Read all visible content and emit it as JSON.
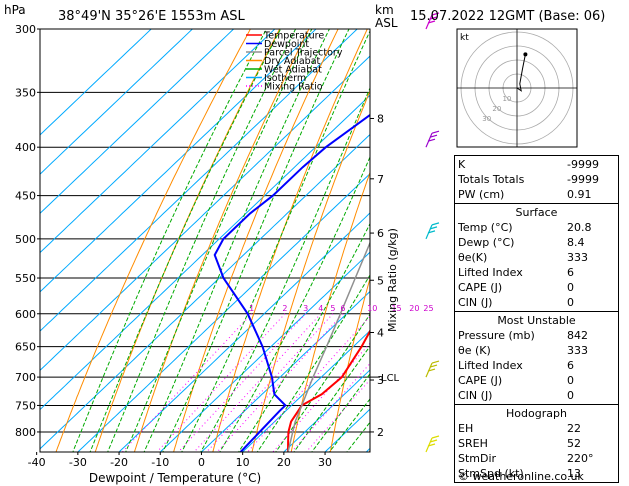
{
  "header": {
    "hpa_label": "hPa",
    "location": "38°49'N  35°26'E  1553m  ASL",
    "km_label": "km",
    "asl_label": "ASL",
    "datetime": "15.07.2022  12GMT  (Base: 06)"
  },
  "chart_data": {
    "type": "line",
    "xlabel": "Dewpoint / Temperature (°C)",
    "ylabel": "Mixing Ratio (g/kg)",
    "x_range": [
      -45,
      35
    ],
    "y_range_hpa": [
      300,
      840
    ],
    "x_ticks": [
      -40,
      -30,
      -20,
      -10,
      0,
      10,
      20,
      30
    ],
    "pressure_levels": [
      300,
      350,
      400,
      450,
      500,
      550,
      600,
      650,
      700,
      750,
      800
    ],
    "km_ticks": [
      {
        "label": "8",
        "p": 373
      },
      {
        "label": "7",
        "p": 432
      },
      {
        "label": "6",
        "p": 493
      },
      {
        "label": "5",
        "p": 553
      },
      {
        "label": "4",
        "p": 628
      },
      {
        "label": "3",
        "p": 705
      },
      {
        "label": "2",
        "p": 800
      }
    ],
    "lcl": {
      "label": "LCL",
      "p": 700
    },
    "mixing_ratio_labels": [
      "1",
      "2",
      "3",
      "4",
      "5",
      "6",
      "10",
      "15",
      "20",
      "25"
    ],
    "mixing_ratios": [
      1,
      2,
      3,
      4,
      5,
      6,
      10,
      15,
      20,
      25
    ],
    "legend": [
      {
        "name": "Temperature",
        "color": "#ff0000",
        "style": "solid"
      },
      {
        "name": "Dewpoint",
        "color": "#0000ff",
        "style": "solid"
      },
      {
        "name": "Parcel Trajectory",
        "color": "#909090",
        "style": "solid"
      },
      {
        "name": "Dry Adiabat",
        "color": "#ff8c00",
        "style": "solid"
      },
      {
        "name": "Wet Adiabat",
        "color": "#00aa00",
        "style": "solid"
      },
      {
        "name": "Isotherm",
        "color": "#00aaff",
        "style": "solid"
      },
      {
        "name": "Mixing Ratio",
        "color": "#ff00ff",
        "style": "dotted"
      }
    ],
    "series": [
      {
        "name": "Temperature",
        "color": "#ff0000",
        "points": [
          [
            840,
            21
          ],
          [
            820,
            18.5
          ],
          [
            800,
            16
          ],
          [
            780,
            14
          ],
          [
            760,
            13
          ],
          [
            750,
            12.5
          ],
          [
            730,
            14.5
          ],
          [
            700,
            15
          ],
          [
            650,
            12
          ],
          [
            600,
            8
          ],
          [
            550,
            2.5
          ],
          [
            500,
            -3.5
          ],
          [
            450,
            -10
          ],
          [
            400,
            -17.5
          ],
          [
            370,
            -23
          ],
          [
            350,
            -26
          ]
        ]
      },
      {
        "name": "Dewpoint",
        "color": "#0000ff",
        "points": [
          [
            840,
            9.5
          ],
          [
            800,
            9
          ],
          [
            760,
            8.5
          ],
          [
            750,
            8.5
          ],
          [
            730,
            3
          ],
          [
            700,
            -2
          ],
          [
            650,
            -12
          ],
          [
            600,
            -24
          ],
          [
            550,
            -39
          ],
          [
            520,
            -47
          ],
          [
            500,
            -49
          ],
          [
            470,
            -49
          ],
          [
            450,
            -48
          ],
          [
            420,
            -48
          ],
          [
            400,
            -47.5
          ],
          [
            370,
            -45
          ],
          [
            350,
            -42
          ],
          [
            320,
            -44
          ],
          [
            300,
            -46
          ]
        ]
      },
      {
        "name": "Parcel Trajectory",
        "color": "#909090",
        "points": [
          [
            840,
            21
          ],
          [
            780,
            15
          ],
          [
            750,
            12.5
          ],
          [
            700,
            8
          ],
          [
            650,
            3.5
          ],
          [
            600,
            -1.5
          ],
          [
            550,
            -7
          ],
          [
            500,
            -13
          ],
          [
            450,
            -20
          ],
          [
            400,
            -28
          ],
          [
            350,
            -37
          ],
          [
            300,
            -47
          ]
        ]
      }
    ],
    "wind_barbs": [
      {
        "p": 300,
        "color": "#cc00cc"
      },
      {
        "p": 400,
        "color": "#9900cc"
      },
      {
        "p": 500,
        "color": "#00bbcc"
      },
      {
        "p": 700,
        "color": "#bbbb00"
      },
      {
        "p": 840,
        "color": "#dddd00"
      }
    ],
    "hodograph": {
      "label": "kt",
      "ring_labels": [
        "10",
        "20",
        "30"
      ],
      "points": [
        [
          0,
          0
        ],
        [
          3,
          -2
        ],
        [
          2,
          3
        ],
        [
          4,
          14
        ],
        [
          6,
          24
        ]
      ]
    }
  },
  "indices": {
    "rows": [
      {
        "label": "K",
        "value": "-9999"
      },
      {
        "label": "Totals Totals",
        "value": "-9999"
      },
      {
        "label": "PW (cm)",
        "value": "0.91"
      }
    ]
  },
  "surface": {
    "title": "Surface",
    "rows": [
      {
        "label": "Temp (°C)",
        "value": "20.8"
      },
      {
        "label": "Dewp (°C)",
        "value": "8.4"
      },
      {
        "label": "θe(K)",
        "value": "333"
      },
      {
        "label": "Lifted Index",
        "value": "6"
      },
      {
        "label": "CAPE (J)",
        "value": "0"
      },
      {
        "label": "CIN (J)",
        "value": "0"
      }
    ]
  },
  "most_unstable": {
    "title": "Most Unstable",
    "rows": [
      {
        "label": "Pressure (mb)",
        "value": "842"
      },
      {
        "label": "θe (K)",
        "value": "333"
      },
      {
        "label": "Lifted Index",
        "value": "6"
      },
      {
        "label": "CAPE (J)",
        "value": "0"
      },
      {
        "label": "CIN (J)",
        "value": "0"
      }
    ]
  },
  "hodograph_table": {
    "title": "Hodograph",
    "rows": [
      {
        "label": "EH",
        "value": "22"
      },
      {
        "label": "SREH",
        "value": "52"
      },
      {
        "label": "StmDir",
        "value": "220°"
      },
      {
        "label": "StmSpd (kt)",
        "value": "13"
      }
    ]
  },
  "credit": "© weatheronline.co.uk"
}
